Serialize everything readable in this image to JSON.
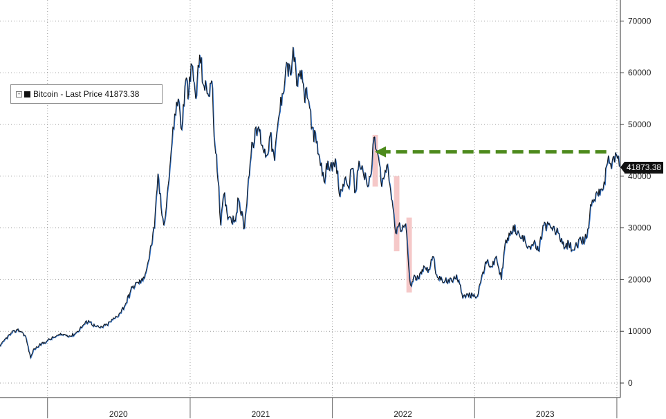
{
  "legend": {
    "label": "Bitcoin - Last Price 41873.38",
    "series_color": "#111111"
  },
  "last_price_label": "41873.38",
  "colors": {
    "line_dark": "#111111",
    "line_blue": "#2f6fc4",
    "arrow": "#4d8a1c",
    "highlight": "#f2b6b6",
    "grid": "#9a9a9a"
  },
  "chart_data": {
    "type": "line",
    "title": "",
    "xlabel": "",
    "ylabel": "",
    "x_tick_labels": [
      "2020",
      "2021",
      "2022",
      "2023"
    ],
    "y_tick_labels": [
      "0",
      "10000",
      "20000",
      "30000",
      "40000",
      "50000",
      "60000",
      "70000"
    ],
    "yticks": [
      0,
      10000,
      20000,
      30000,
      40000,
      50000,
      60000,
      70000
    ],
    "ylim": [
      0,
      73000
    ],
    "xlim": [
      "2019-09-01",
      "2024-01-10"
    ],
    "grid": true,
    "legend_position": "top-left",
    "y_axis_side": "right",
    "series": [
      {
        "name": "Bitcoin - Last Price",
        "points": [
          [
            "2019-09-01",
            7100
          ],
          [
            "2019-09-15",
            8600
          ],
          [
            "2019-10-01",
            9700
          ],
          [
            "2019-10-15",
            10300
          ],
          [
            "2019-10-25",
            10000
          ],
          [
            "2019-11-05",
            9100
          ],
          [
            "2019-11-18",
            4900
          ],
          [
            "2019-11-25",
            6400
          ],
          [
            "2019-12-10",
            7300
          ],
          [
            "2019-12-31",
            8200
          ],
          [
            "2020-01-15",
            8800
          ],
          [
            "2020-02-01",
            9300
          ],
          [
            "2020-02-15",
            9400
          ],
          [
            "2020-03-01",
            9100
          ],
          [
            "2020-03-15",
            9800
          ],
          [
            "2020-04-01",
            11200
          ],
          [
            "2020-04-15",
            12100
          ],
          [
            "2020-05-01",
            11000
          ],
          [
            "2020-05-15",
            10700
          ],
          [
            "2020-06-01",
            11300
          ],
          [
            "2020-06-20",
            12500
          ],
          [
            "2020-07-05",
            13600
          ],
          [
            "2020-07-20",
            15500
          ],
          [
            "2020-08-05",
            18500
          ],
          [
            "2020-08-20",
            19500
          ],
          [
            "2020-09-01",
            19800
          ],
          [
            "2020-09-15",
            23500
          ],
          [
            "2020-10-01",
            30000
          ],
          [
            "2020-10-10",
            40500
          ],
          [
            "2020-10-18",
            34000
          ],
          [
            "2020-10-25",
            30500
          ],
          [
            "2020-11-05",
            38000
          ],
          [
            "2020-11-15",
            46500
          ],
          [
            "2020-11-22",
            52000
          ],
          [
            "2020-12-01",
            55000
          ],
          [
            "2020-12-10",
            49000
          ],
          [
            "2020-12-20",
            58500
          ],
          [
            "2020-12-28",
            56000
          ],
          [
            "2021-01-05",
            61500
          ],
          [
            "2021-01-15",
            55000
          ],
          [
            "2021-01-25",
            63500
          ],
          [
            "2021-02-05",
            57500
          ],
          [
            "2021-02-15",
            56000
          ],
          [
            "2021-02-25",
            58500
          ],
          [
            "2021-03-05",
            46000
          ],
          [
            "2021-03-15",
            38000
          ],
          [
            "2021-03-20",
            30500
          ],
          [
            "2021-03-28",
            36500
          ],
          [
            "2021-04-05",
            33000
          ],
          [
            "2021-04-15",
            32000
          ],
          [
            "2021-04-25",
            31500
          ],
          [
            "2021-05-05",
            35500
          ],
          [
            "2021-05-20",
            30000
          ],
          [
            "2021-05-30",
            39500
          ],
          [
            "2021-06-10",
            46500
          ],
          [
            "2021-06-25",
            49500
          ],
          [
            "2021-07-05",
            46000
          ],
          [
            "2021-07-15",
            44000
          ],
          [
            "2021-07-25",
            48000
          ],
          [
            "2021-08-05",
            43000
          ],
          [
            "2021-08-15",
            51000
          ],
          [
            "2021-08-25",
            56000
          ],
          [
            "2021-09-05",
            62000
          ],
          [
            "2021-09-15",
            59500
          ],
          [
            "2021-09-22",
            65000
          ],
          [
            "2021-10-01",
            57500
          ],
          [
            "2021-10-10",
            60500
          ],
          [
            "2021-10-20",
            56000
          ],
          [
            "2021-11-01",
            54500
          ],
          [
            "2021-11-10",
            49500
          ],
          [
            "2021-11-20",
            46500
          ],
          [
            "2021-12-01",
            42000
          ],
          [
            "2021-12-10",
            39000
          ],
          [
            "2021-12-20",
            43000
          ],
          [
            "2021-12-31",
            41000
          ],
          [
            "2022-01-10",
            42500
          ],
          [
            "2022-01-20",
            36000
          ],
          [
            "2022-02-01",
            39500
          ],
          [
            "2022-02-10",
            38000
          ],
          [
            "2022-02-20",
            41500
          ],
          [
            "2022-03-01",
            37000
          ],
          [
            "2022-03-10",
            43000
          ],
          [
            "2022-03-20",
            41000
          ],
          [
            "2022-04-01",
            38000
          ],
          [
            "2022-04-10",
            40500
          ],
          [
            "2022-04-17",
            47500
          ],
          [
            "2022-04-25",
            45000
          ],
          [
            "2022-05-01",
            42500
          ],
          [
            "2022-05-07",
            38000
          ],
          [
            "2022-05-12",
            39500
          ],
          [
            "2022-05-20",
            42000
          ],
          [
            "2022-05-28",
            38500
          ],
          [
            "2022-06-05",
            34000
          ],
          [
            "2022-06-12",
            29000
          ],
          [
            "2022-06-20",
            30500
          ],
          [
            "2022-06-28",
            29500
          ],
          [
            "2022-07-05",
            30500
          ],
          [
            "2022-07-10",
            29000
          ],
          [
            "2022-07-15",
            23000
          ],
          [
            "2022-07-20",
            19000
          ],
          [
            "2022-07-28",
            20500
          ],
          [
            "2022-08-05",
            20000
          ],
          [
            "2022-08-15",
            21500
          ],
          [
            "2022-08-25",
            22500
          ],
          [
            "2022-09-05",
            22000
          ],
          [
            "2022-09-15",
            24500
          ],
          [
            "2022-09-25",
            21000
          ],
          [
            "2022-10-05",
            20000
          ],
          [
            "2022-10-15",
            19500
          ],
          [
            "2022-10-25",
            20000
          ],
          [
            "2022-11-05",
            19500
          ],
          [
            "2022-11-15",
            21000
          ],
          [
            "2022-11-25",
            19000
          ],
          [
            "2022-12-01",
            16500
          ],
          [
            "2022-12-10",
            17000
          ],
          [
            "2022-12-20",
            17000
          ],
          [
            "2023-01-01",
            16800
          ],
          [
            "2023-01-10",
            17300
          ],
          [
            "2023-01-20",
            21000
          ],
          [
            "2023-02-01",
            23500
          ],
          [
            "2023-02-15",
            22500
          ],
          [
            "2023-02-25",
            24500
          ],
          [
            "2023-03-10",
            20000
          ],
          [
            "2023-03-20",
            27000
          ],
          [
            "2023-04-01",
            28500
          ],
          [
            "2023-04-10",
            30500
          ],
          [
            "2023-04-20",
            29000
          ],
          [
            "2023-05-01",
            28000
          ],
          [
            "2023-05-10",
            27500
          ],
          [
            "2023-05-20",
            26500
          ],
          [
            "2023-06-01",
            27000
          ],
          [
            "2023-06-15",
            25500
          ],
          [
            "2023-06-25",
            30500
          ],
          [
            "2023-07-05",
            30500
          ],
          [
            "2023-07-15",
            30000
          ],
          [
            "2023-07-25",
            29500
          ],
          [
            "2023-08-05",
            29000
          ],
          [
            "2023-08-18",
            26000
          ],
          [
            "2023-08-30",
            27000
          ],
          [
            "2023-09-10",
            25800
          ],
          [
            "2023-09-20",
            26500
          ],
          [
            "2023-10-01",
            27500
          ],
          [
            "2023-10-10",
            27500
          ],
          [
            "2023-10-20",
            30000
          ],
          [
            "2023-10-25",
            34500
          ],
          [
            "2023-11-01",
            35000
          ],
          [
            "2023-11-10",
            37000
          ],
          [
            "2023-11-20",
            37500
          ],
          [
            "2023-12-01",
            38500
          ],
          [
            "2023-12-05",
            42000
          ],
          [
            "2023-12-10",
            44000
          ],
          [
            "2023-12-15",
            42500
          ],
          [
            "2023-12-20",
            43000
          ],
          [
            "2023-12-28",
            44500
          ],
          [
            "2024-01-02",
            43500
          ],
          [
            "2024-01-07",
            41873.38
          ]
        ]
      }
    ],
    "annotations": {
      "arrow": {
        "from": [
          "2023-12-05",
          44700
        ],
        "to": [
          "2022-04-20",
          44700
        ]
      },
      "highlight_boxes": [
        {
          "x0": "2022-04-14",
          "x1": "2022-04-28",
          "y0": 38000,
          "y1": 48000
        },
        {
          "x0": "2022-06-08",
          "x1": "2022-06-22",
          "y0": 25500,
          "y1": 40000
        },
        {
          "x0": "2022-07-10",
          "x1": "2022-07-24",
          "y0": 17500,
          "y1": 32000
        }
      ]
    }
  }
}
